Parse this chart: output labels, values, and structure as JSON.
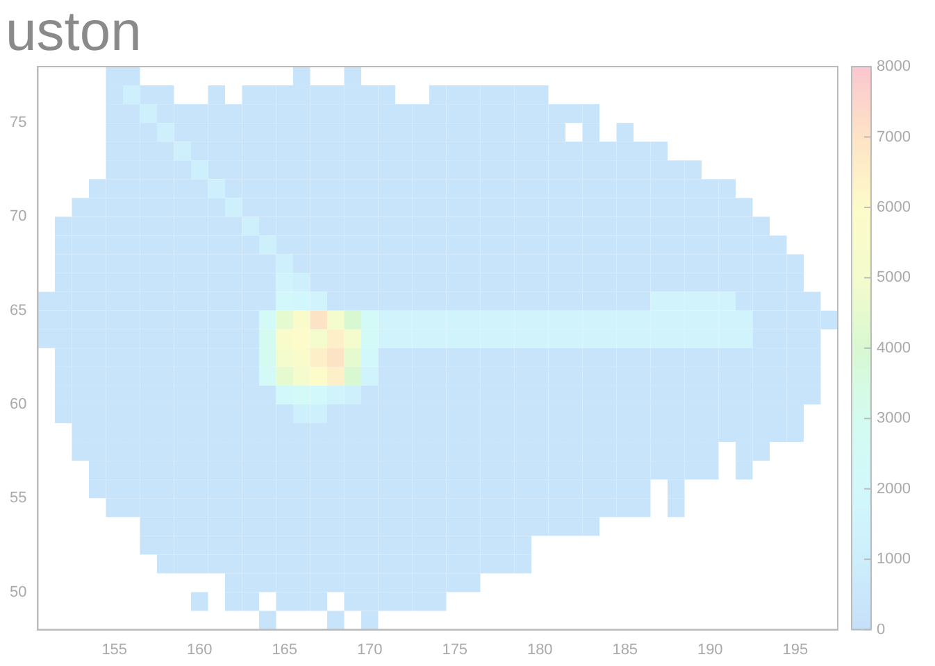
{
  "chart_data": {
    "type": "heatmap",
    "title": "uston",
    "xlim": [
      150.5,
      197.5
    ],
    "xticks": [
      155,
      160,
      165,
      170,
      175,
      180,
      185,
      190,
      195
    ],
    "ylim": [
      48,
      78
    ],
    "yticks": [
      50,
      55,
      60,
      65,
      70,
      75
    ],
    "clim": [
      0,
      8000
    ],
    "cticks": [
      0,
      1000,
      2000,
      3000,
      4000,
      5000,
      6000,
      7000,
      8000
    ],
    "grid": false,
    "cells": [
      [
        null,
        null,
        null,
        null,
        300,
        300,
        null,
        null,
        null,
        null,
        null,
        null,
        null,
        null,
        null,
        300,
        null,
        null,
        300,
        null,
        null,
        null,
        null,
        null,
        null,
        null,
        null,
        null,
        null,
        null,
        null,
        null,
        null,
        null,
        null,
        null,
        null,
        null,
        null,
        null,
        null,
        null,
        null,
        null,
        null,
        null,
        null
      ],
      [
        null,
        null,
        null,
        null,
        300,
        1200,
        300,
        300,
        null,
        null,
        300,
        null,
        300,
        300,
        300,
        300,
        300,
        300,
        300,
        300,
        300,
        null,
        null,
        300,
        300,
        300,
        300,
        300,
        300,
        300,
        null,
        null,
        null,
        null,
        null,
        null,
        null,
        null,
        null,
        null,
        null,
        null,
        null,
        null,
        null,
        null,
        null
      ],
      [
        null,
        null,
        null,
        null,
        300,
        300,
        1200,
        300,
        300,
        300,
        300,
        300,
        300,
        300,
        300,
        300,
        300,
        300,
        300,
        300,
        300,
        300,
        300,
        300,
        300,
        300,
        300,
        300,
        300,
        300,
        300,
        300,
        300,
        null,
        null,
        null,
        null,
        null,
        null,
        null,
        null,
        null,
        null,
        null,
        null,
        null,
        null
      ],
      [
        null,
        null,
        null,
        null,
        300,
        300,
        300,
        1200,
        300,
        300,
        300,
        300,
        300,
        300,
        300,
        300,
        300,
        300,
        300,
        300,
        300,
        300,
        300,
        300,
        300,
        300,
        300,
        300,
        300,
        300,
        300,
        null,
        300,
        null,
        300,
        null,
        null,
        null,
        null,
        null,
        null,
        null,
        null,
        null,
        null,
        null,
        null
      ],
      [
        null,
        null,
        null,
        null,
        300,
        300,
        300,
        300,
        1200,
        300,
        300,
        300,
        300,
        300,
        300,
        300,
        300,
        300,
        300,
        300,
        300,
        300,
        300,
        300,
        300,
        300,
        300,
        300,
        300,
        300,
        300,
        300,
        300,
        300,
        300,
        300,
        300,
        null,
        null,
        null,
        null,
        null,
        null,
        null,
        null,
        null,
        null
      ],
      [
        null,
        null,
        null,
        null,
        300,
        300,
        300,
        300,
        300,
        1200,
        300,
        300,
        300,
        300,
        300,
        300,
        300,
        300,
        300,
        300,
        300,
        300,
        300,
        300,
        300,
        300,
        300,
        300,
        300,
        300,
        300,
        300,
        300,
        300,
        300,
        300,
        300,
        300,
        300,
        null,
        null,
        null,
        null,
        null,
        null,
        null,
        null
      ],
      [
        null,
        null,
        null,
        300,
        300,
        300,
        300,
        300,
        300,
        300,
        1200,
        300,
        300,
        300,
        300,
        300,
        300,
        300,
        300,
        300,
        300,
        300,
        300,
        300,
        300,
        300,
        300,
        300,
        300,
        300,
        300,
        300,
        300,
        300,
        300,
        300,
        300,
        300,
        300,
        300,
        300,
        null,
        null,
        null,
        null,
        null,
        null
      ],
      [
        null,
        null,
        300,
        300,
        300,
        300,
        300,
        300,
        300,
        300,
        300,
        1200,
        300,
        300,
        300,
        300,
        300,
        300,
        300,
        300,
        300,
        300,
        300,
        300,
        300,
        300,
        300,
        300,
        300,
        300,
        300,
        300,
        300,
        300,
        300,
        300,
        300,
        300,
        300,
        300,
        300,
        300,
        null,
        null,
        null,
        null,
        null
      ],
      [
        null,
        300,
        300,
        300,
        300,
        300,
        300,
        300,
        300,
        300,
        300,
        300,
        1200,
        300,
        300,
        300,
        300,
        300,
        300,
        300,
        300,
        300,
        300,
        300,
        300,
        300,
        300,
        300,
        300,
        300,
        300,
        300,
        300,
        300,
        300,
        300,
        300,
        300,
        300,
        300,
        300,
        300,
        300,
        null,
        null,
        null,
        null
      ],
      [
        null,
        300,
        300,
        300,
        300,
        300,
        300,
        300,
        300,
        300,
        300,
        300,
        300,
        1200,
        300,
        300,
        300,
        300,
        300,
        300,
        300,
        300,
        300,
        300,
        300,
        300,
        300,
        300,
        300,
        300,
        300,
        300,
        300,
        300,
        300,
        300,
        300,
        300,
        300,
        300,
        300,
        300,
        300,
        300,
        null,
        null,
        null
      ],
      [
        null,
        300,
        300,
        300,
        300,
        300,
        300,
        300,
        300,
        300,
        300,
        300,
        300,
        300,
        1200,
        300,
        300,
        300,
        300,
        300,
        300,
        300,
        300,
        300,
        300,
        300,
        300,
        300,
        300,
        300,
        300,
        300,
        300,
        300,
        300,
        300,
        300,
        300,
        300,
        300,
        300,
        300,
        300,
        300,
        300,
        null,
        null
      ],
      [
        null,
        300,
        300,
        300,
        300,
        300,
        300,
        300,
        300,
        300,
        300,
        300,
        300,
        300,
        1500,
        1200,
        300,
        300,
        300,
        300,
        300,
        300,
        300,
        300,
        300,
        300,
        300,
        300,
        300,
        300,
        300,
        300,
        300,
        300,
        300,
        300,
        300,
        300,
        300,
        300,
        300,
        300,
        300,
        300,
        300,
        null,
        null
      ],
      [
        300,
        300,
        300,
        300,
        300,
        300,
        300,
        300,
        300,
        300,
        300,
        300,
        300,
        300,
        2000,
        1800,
        1500,
        300,
        300,
        300,
        300,
        300,
        300,
        300,
        300,
        300,
        300,
        300,
        300,
        300,
        300,
        300,
        300,
        300,
        300,
        300,
        1500,
        1500,
        1500,
        1500,
        1500,
        300,
        300,
        300,
        300,
        300,
        null
      ],
      [
        300,
        300,
        300,
        300,
        300,
        300,
        300,
        300,
        300,
        300,
        300,
        300,
        300,
        2500,
        4500,
        5500,
        7000,
        5000,
        4000,
        2500,
        1500,
        1500,
        1500,
        1500,
        1500,
        1500,
        1500,
        1500,
        1500,
        1500,
        1500,
        1500,
        1500,
        1500,
        1500,
        1500,
        1500,
        1500,
        1500,
        1500,
        1500,
        1500,
        300,
        300,
        300,
        300,
        300
      ],
      [
        300,
        300,
        300,
        300,
        300,
        300,
        300,
        300,
        300,
        300,
        300,
        300,
        300,
        3000,
        5500,
        6000,
        5000,
        6500,
        5000,
        2500,
        1500,
        1500,
        1500,
        1500,
        1500,
        1500,
        1500,
        1500,
        1500,
        1500,
        1500,
        1500,
        1500,
        1500,
        1500,
        1500,
        1500,
        1500,
        1500,
        1500,
        1500,
        1500,
        300,
        300,
        300,
        300,
        null
      ],
      [
        null,
        300,
        300,
        300,
        300,
        300,
        300,
        300,
        300,
        300,
        300,
        300,
        300,
        3000,
        5000,
        5500,
        6500,
        7000,
        4500,
        2000,
        300,
        300,
        300,
        300,
        300,
        300,
        300,
        300,
        300,
        300,
        300,
        300,
        300,
        300,
        300,
        300,
        300,
        300,
        300,
        300,
        300,
        300,
        300,
        300,
        300,
        300,
        null
      ],
      [
        null,
        300,
        300,
        300,
        300,
        300,
        300,
        300,
        300,
        300,
        300,
        300,
        300,
        2500,
        4500,
        5000,
        6000,
        6500,
        4000,
        1500,
        300,
        300,
        300,
        300,
        300,
        300,
        300,
        300,
        300,
        300,
        300,
        300,
        300,
        300,
        300,
        300,
        300,
        300,
        300,
        300,
        300,
        300,
        300,
        300,
        300,
        300,
        null
      ],
      [
        null,
        300,
        300,
        300,
        300,
        300,
        300,
        300,
        300,
        300,
        300,
        300,
        300,
        300,
        2000,
        2500,
        2000,
        1500,
        1200,
        300,
        300,
        300,
        300,
        300,
        300,
        300,
        300,
        300,
        300,
        300,
        300,
        300,
        300,
        300,
        300,
        300,
        300,
        300,
        300,
        300,
        300,
        300,
        300,
        300,
        300,
        300,
        null
      ],
      [
        null,
        300,
        300,
        300,
        300,
        300,
        300,
        300,
        300,
        300,
        300,
        300,
        300,
        300,
        300,
        1200,
        1200,
        300,
        300,
        300,
        300,
        300,
        300,
        300,
        300,
        300,
        300,
        300,
        300,
        300,
        300,
        300,
        300,
        300,
        300,
        300,
        300,
        300,
        300,
        300,
        300,
        300,
        300,
        300,
        300,
        null,
        null
      ],
      [
        null,
        null,
        300,
        300,
        300,
        300,
        300,
        300,
        300,
        300,
        300,
        300,
        300,
        300,
        300,
        300,
        300,
        300,
        300,
        300,
        300,
        300,
        300,
        300,
        300,
        300,
        300,
        300,
        300,
        300,
        300,
        300,
        300,
        300,
        300,
        300,
        300,
        300,
        300,
        300,
        300,
        300,
        300,
        300,
        300,
        null,
        null
      ],
      [
        null,
        null,
        300,
        300,
        300,
        300,
        300,
        300,
        300,
        300,
        300,
        300,
        300,
        300,
        300,
        300,
        300,
        300,
        300,
        300,
        300,
        300,
        300,
        300,
        300,
        300,
        300,
        300,
        300,
        300,
        300,
        300,
        300,
        300,
        300,
        300,
        300,
        300,
        300,
        300,
        null,
        300,
        300,
        null,
        null,
        null,
        null
      ],
      [
        null,
        null,
        null,
        300,
        300,
        300,
        300,
        300,
        300,
        300,
        300,
        300,
        300,
        300,
        300,
        300,
        300,
        300,
        300,
        300,
        300,
        300,
        300,
        300,
        300,
        300,
        300,
        300,
        300,
        300,
        300,
        300,
        300,
        300,
        300,
        300,
        300,
        300,
        300,
        300,
        null,
        300,
        null,
        null,
        null,
        null,
        null
      ],
      [
        null,
        null,
        null,
        300,
        300,
        300,
        300,
        300,
        300,
        300,
        300,
        300,
        300,
        300,
        300,
        300,
        300,
        300,
        300,
        300,
        300,
        300,
        300,
        300,
        300,
        300,
        300,
        300,
        300,
        300,
        300,
        300,
        300,
        300,
        300,
        300,
        null,
        300,
        null,
        null,
        null,
        null,
        null,
        null,
        null,
        null,
        null
      ],
      [
        null,
        null,
        null,
        null,
        300,
        300,
        300,
        300,
        300,
        300,
        300,
        300,
        300,
        300,
        300,
        300,
        300,
        300,
        300,
        300,
        300,
        300,
        300,
        300,
        300,
        300,
        300,
        300,
        300,
        300,
        300,
        300,
        300,
        300,
        300,
        300,
        null,
        300,
        null,
        null,
        null,
        null,
        null,
        null,
        null,
        null,
        null
      ],
      [
        null,
        null,
        null,
        null,
        null,
        null,
        300,
        300,
        300,
        300,
        300,
        300,
        300,
        300,
        300,
        300,
        300,
        300,
        300,
        300,
        300,
        300,
        300,
        300,
        300,
        300,
        300,
        300,
        300,
        300,
        300,
        300,
        300,
        null,
        null,
        null,
        null,
        null,
        null,
        null,
        null,
        null,
        null,
        null,
        null,
        null,
        null
      ],
      [
        null,
        null,
        null,
        null,
        null,
        null,
        300,
        300,
        300,
        300,
        300,
        300,
        300,
        300,
        300,
        300,
        300,
        300,
        300,
        300,
        300,
        300,
        300,
        300,
        300,
        300,
        300,
        300,
        300,
        null,
        null,
        null,
        null,
        null,
        null,
        null,
        null,
        null,
        null,
        null,
        null,
        null,
        null,
        null,
        null,
        null,
        null
      ],
      [
        null,
        null,
        null,
        null,
        null,
        null,
        null,
        300,
        300,
        300,
        300,
        300,
        300,
        300,
        300,
        300,
        300,
        300,
        300,
        300,
        300,
        300,
        300,
        300,
        300,
        300,
        300,
        300,
        300,
        null,
        null,
        null,
        null,
        null,
        null,
        null,
        null,
        null,
        null,
        null,
        null,
        null,
        null,
        null,
        null,
        null,
        null
      ],
      [
        null,
        null,
        null,
        null,
        null,
        null,
        null,
        null,
        null,
        null,
        null,
        300,
        300,
        300,
        300,
        300,
        300,
        300,
        300,
        300,
        300,
        300,
        300,
        300,
        300,
        300,
        null,
        null,
        null,
        null,
        null,
        null,
        null,
        null,
        null,
        null,
        null,
        null,
        null,
        null,
        null,
        null,
        null,
        null,
        null,
        null,
        null
      ],
      [
        null,
        null,
        null,
        null,
        null,
        null,
        null,
        null,
        null,
        300,
        null,
        300,
        300,
        null,
        300,
        300,
        300,
        null,
        300,
        300,
        300,
        300,
        300,
        300,
        null,
        null,
        null,
        null,
        null,
        null,
        null,
        null,
        null,
        null,
        null,
        null,
        null,
        null,
        null,
        null,
        null,
        null,
        null,
        null,
        null,
        null,
        null
      ],
      [
        null,
        null,
        null,
        null,
        null,
        null,
        null,
        null,
        null,
        null,
        null,
        null,
        null,
        300,
        null,
        null,
        null,
        300,
        null,
        300,
        null,
        null,
        null,
        null,
        null,
        null,
        null,
        null,
        null,
        null,
        null,
        null,
        null,
        null,
        null,
        null,
        null,
        null,
        null,
        null,
        null,
        null,
        null,
        null,
        null,
        null,
        null
      ]
    ]
  }
}
